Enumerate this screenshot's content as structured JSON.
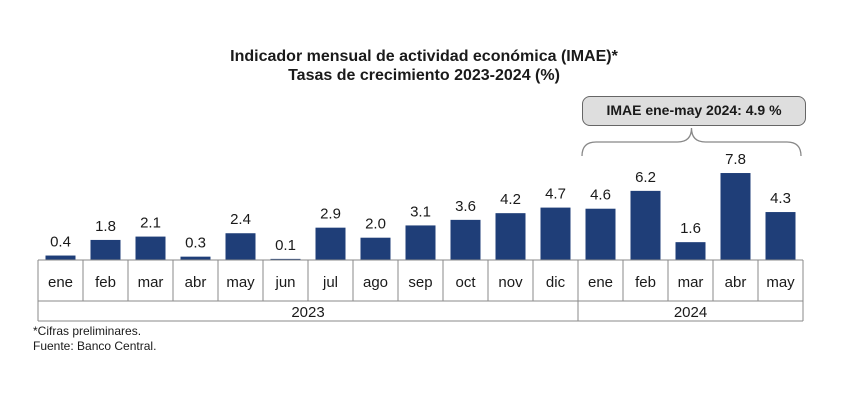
{
  "chart_data": {
    "type": "bar",
    "title": "Indicador mensual de actividad económica (IMAE)*",
    "subtitle": "Tasas de crecimiento 2023-2024 (%)",
    "categories": [
      "ene",
      "feb",
      "mar",
      "abr",
      "may",
      "jun",
      "jul",
      "ago",
      "sep",
      "oct",
      "nov",
      "dic",
      "ene",
      "feb",
      "mar",
      "abr",
      "may"
    ],
    "values": [
      0.4,
      1.8,
      2.1,
      0.3,
      2.4,
      0.1,
      2.9,
      2.0,
      3.1,
      3.6,
      4.2,
      4.7,
      4.6,
      6.2,
      1.6,
      7.8,
      4.3
    ],
    "value_labels": [
      "0.4",
      "1.8",
      "2.1",
      "0.3",
      "2.4",
      "0.1",
      "2.9",
      "2.0",
      "3.1",
      "3.6",
      "4.2",
      "4.7",
      "4.6",
      "6.2",
      "1.6",
      "7.8",
      "4.3"
    ],
    "year_groups": [
      {
        "label": "2023",
        "count": 12
      },
      {
        "label": "2024",
        "count": 5
      }
    ],
    "annotation": "IMAE ene-may 2024: 4.9 %",
    "bar_color": "#1f3e78",
    "grid": false,
    "legend": "none"
  },
  "footnotes": {
    "note": "*Cifras preliminares.",
    "source": "Fuente: Banco Central."
  }
}
